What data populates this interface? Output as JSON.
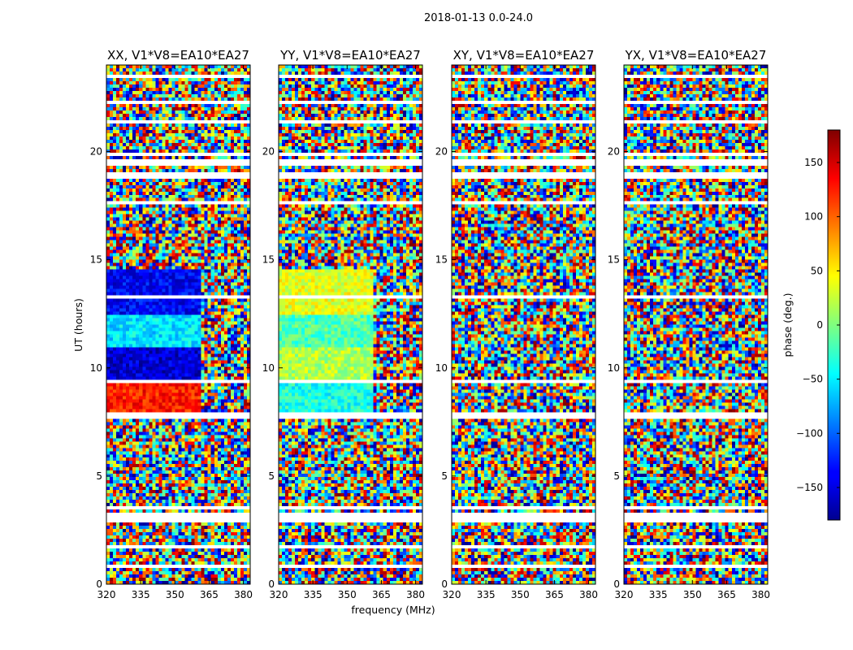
{
  "suptitle": "2018-01-13 0.0-24.0",
  "chart_data": {
    "type": "heatmap",
    "panels": [
      {
        "title": "XX, V1*V8=EA10*EA27",
        "pol": "XX"
      },
      {
        "title": "YY, V1*V8=EA10*EA27",
        "pol": "YY"
      },
      {
        "title": "XY, V1*V8=EA10*EA27",
        "pol": "XY"
      },
      {
        "title": "YX, V1*V8=EA10*EA27",
        "pol": "YX"
      }
    ],
    "xlabel": "frequency (MHz)",
    "ylabel": "UT (hours)",
    "xlim": [
      320,
      383
    ],
    "ylim": [
      0,
      24
    ],
    "xticks": [
      320,
      335,
      350,
      365,
      380
    ],
    "yticks": [
      0,
      5,
      10,
      15,
      20
    ],
    "colorbar": {
      "label": "phase (deg.)",
      "range": [
        -180,
        180
      ],
      "ticks": [
        -150,
        -100,
        -50,
        0,
        50,
        100,
        150
      ],
      "tick_labels": [
        "−150",
        "−100",
        "−50",
        "0",
        "50",
        "100",
        "150"
      ],
      "colormap": "jet"
    },
    "flagged_bands_hours": [
      [
        0.8,
        0.9
      ],
      [
        1.7,
        1.8
      ],
      [
        2.8,
        3.3
      ],
      [
        3.5,
        3.6
      ],
      [
        7.6,
        8.0
      ],
      [
        9.3,
        9.4
      ],
      [
        13.2,
        13.4
      ],
      [
        14.5,
        14.6
      ],
      [
        16.0,
        16.1
      ],
      [
        16.9,
        17.0
      ],
      [
        17.6,
        17.7
      ],
      [
        18.8,
        19.0
      ],
      [
        19.4,
        19.6
      ],
      [
        19.8,
        19.9
      ],
      [
        21.3,
        21.5
      ],
      [
        22.2,
        22.3
      ],
      [
        23.4,
        23.5
      ]
    ]
  }
}
